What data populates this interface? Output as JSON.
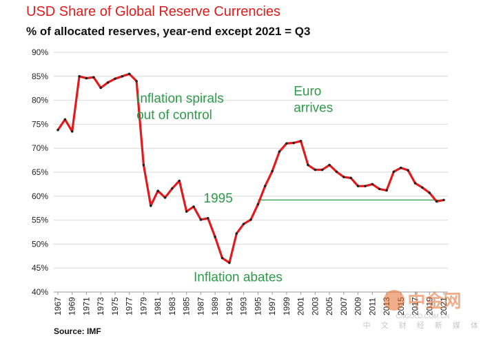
{
  "title": "USD Share of Global Reserve Currencies",
  "subtitle": "% of allocated reserves, year-end except 2021 = Q3",
  "source": "Source: IMF",
  "watermark": {
    "brand": "中金网",
    "url": "CNGOLD.COM.CN",
    "tagline": "中 文 财 经 新 媒 体"
  },
  "chart_data": {
    "type": "line",
    "ylim": [
      40,
      90
    ],
    "yticks": [
      40,
      45,
      50,
      55,
      60,
      65,
      70,
      75,
      80,
      85,
      90
    ],
    "ytick_labels": [
      "40%",
      "45%",
      "50%",
      "55%",
      "60%",
      "65%",
      "70%",
      "75%",
      "80%",
      "85%",
      "90%"
    ],
    "xlim": [
      1967,
      2021
    ],
    "xtick_labels": [
      "1967",
      "1969",
      "1971",
      "1973",
      "1975",
      "1977",
      "1979",
      "1981",
      "1983",
      "1985",
      "1987",
      "1989",
      "1991",
      "1993",
      "1995",
      "1997",
      "1999",
      "2001",
      "2003",
      "2005",
      "2007",
      "2009",
      "2011",
      "2013",
      "2015",
      "2017",
      "2019",
      "2021"
    ],
    "grid": "horizontal",
    "series": [
      {
        "color": "#e31a1c",
        "x": [
          1967,
          1968,
          1969,
          1970,
          1971,
          1972,
          1973,
          1974,
          1975,
          1976,
          1977,
          1978,
          1979,
          1980,
          1981,
          1982,
          1983,
          1984,
          1985,
          1986,
          1987,
          1988,
          1989,
          1990,
          1991,
          1992,
          1993,
          1994,
          1995,
          1996,
          1997,
          1998,
          1999,
          2000,
          2001,
          2002,
          2003,
          2004,
          2005,
          2006,
          2007,
          2008,
          2009,
          2010,
          2011,
          2012,
          2013,
          2014,
          2015,
          2016,
          2017,
          2018,
          2019,
          2020,
          2021
        ],
        "y": [
          73.8,
          76.0,
          73.5,
          85.0,
          84.6,
          84.8,
          82.6,
          83.7,
          84.5,
          85.0,
          85.5,
          84.0,
          66.5,
          58.0,
          61.1,
          59.7,
          61.6,
          63.2,
          56.8,
          57.8,
          55.1,
          55.4,
          51.5,
          47.1,
          46.1,
          52.2,
          54.2,
          55.1,
          58.3,
          62.1,
          65.2,
          69.3,
          71.0,
          71.1,
          71.5,
          66.5,
          65.5,
          65.5,
          66.5,
          65.1,
          64.0,
          63.8,
          62.1,
          62.1,
          62.5,
          61.5,
          61.2,
          65.1,
          65.9,
          65.4,
          62.7,
          61.8,
          60.7,
          58.9,
          59.2
        ]
      }
    ],
    "reference_line": {
      "label": "1995",
      "y": 59.2,
      "x_from": 1995,
      "x_to": 2021,
      "color": "#2e9a4a"
    },
    "annotations": [
      {
        "lines": [
          "Inflation spirals",
          "out of control"
        ],
        "x": 1978,
        "y": 79.5
      },
      {
        "lines": [
          "Euro",
          "arrives"
        ],
        "x": 2000,
        "y": 81.0
      },
      {
        "lines": [
          "Inflation abates"
        ],
        "x": 1986,
        "y": 42.2
      },
      {
        "lines": [
          "1995"
        ],
        "x": 1987.4,
        "y": 58.7
      }
    ]
  }
}
